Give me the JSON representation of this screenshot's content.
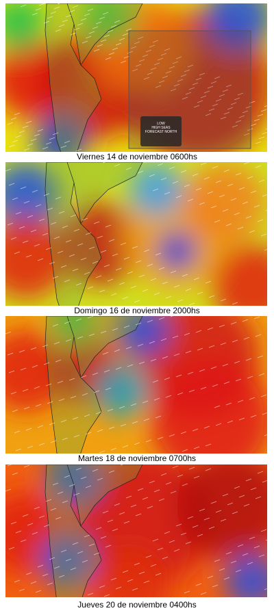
{
  "panels": [
    {
      "caption": "Viernes 14 de noviembre 0600hs"
    },
    {
      "caption": "Domingo 16 de noviembre 2000hs"
    },
    {
      "caption": "Martes 18 de noviembre 0700hs"
    },
    {
      "caption": "Jueves 20 de noviembre 0400hs"
    }
  ],
  "popup": {
    "lines": [
      "LOW",
      "HIGH SEAS",
      "FORECAST NORTH"
    ]
  }
}
